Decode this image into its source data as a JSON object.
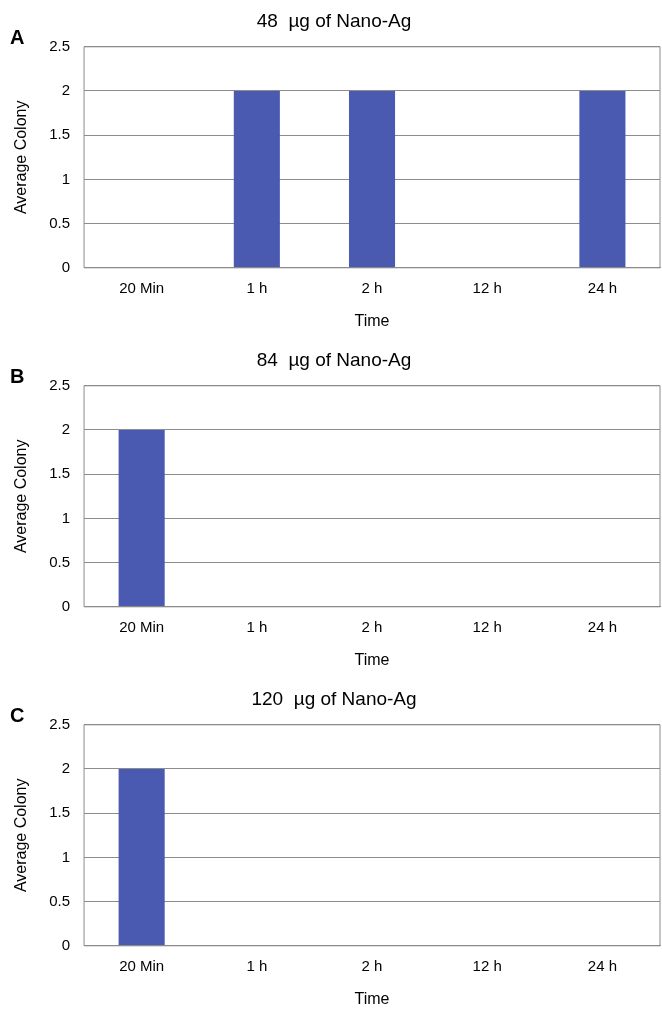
{
  "chart_data": [
    {
      "type": "bar",
      "title": "48  µg of Nano-Ag",
      "annotations": [
        "A"
      ],
      "xlabel": "Time",
      "ylabel": "Average Colony",
      "categories": [
        "20 Min",
        "1 h",
        "2 h",
        "12 h",
        "24 h"
      ],
      "values": [
        0,
        2,
        2,
        0,
        2
      ],
      "color": "#4a5ab0",
      "ylim": [
        0,
        2.5
      ],
      "yticks": [
        0,
        0.5,
        1,
        1.5,
        2,
        2.5
      ],
      "grid": "y"
    },
    {
      "type": "bar",
      "title": "84  µg of Nano-Ag",
      "annotations": [
        "B"
      ],
      "xlabel": "Time",
      "ylabel": "Average Colony",
      "categories": [
        "20 Min",
        "1 h",
        "2 h",
        "12 h",
        "24 h"
      ],
      "values": [
        2,
        0,
        0,
        0,
        0
      ],
      "color": "#4a5ab0",
      "ylim": [
        0,
        2.5
      ],
      "yticks": [
        0,
        0.5,
        1,
        1.5,
        2,
        2.5
      ],
      "grid": "y"
    },
    {
      "type": "bar",
      "title": "120  µg of Nano-Ag",
      "annotations": [
        "C"
      ],
      "xlabel": "Time",
      "ylabel": "Average Colony",
      "categories": [
        "20 Min",
        "1 h",
        "2 h",
        "12 h",
        "24 h"
      ],
      "values": [
        2,
        0,
        0,
        0,
        0
      ],
      "color": "#4a5ab0",
      "ylim": [
        0,
        2.5
      ],
      "yticks": [
        0,
        0.5,
        1,
        1.5,
        2,
        2.5
      ],
      "grid": "y"
    }
  ]
}
